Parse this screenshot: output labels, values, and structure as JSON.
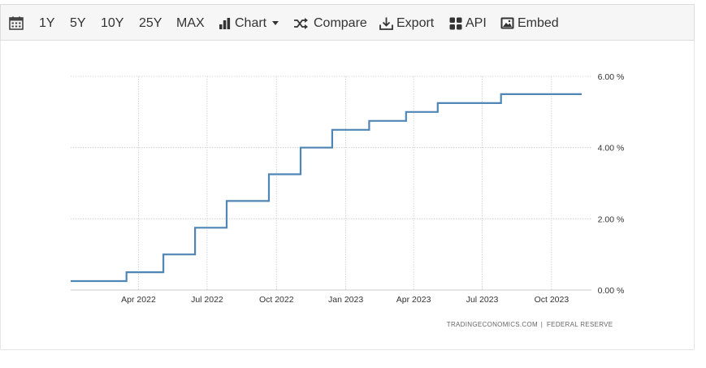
{
  "toolbar": {
    "ranges": [
      "1Y",
      "5Y",
      "10Y",
      "25Y",
      "MAX"
    ],
    "chart_label": "Chart",
    "compare_label": "Compare",
    "export_label": "Export",
    "api_label": "API",
    "embed_label": "Embed",
    "icons": [
      "calendar-icon",
      "bar-chart-icon",
      "caret-down-icon",
      "shuffle-icon",
      "download-icon",
      "grid-icon",
      "image-icon"
    ]
  },
  "credit": {
    "source": "TRADINGECONOMICS.COM",
    "separator": "|",
    "provider": "FEDERAL RESERVE"
  },
  "colors": {
    "line": "#4f86b6",
    "grid": "#cccccc",
    "toolbar_bg": "#f6f6f6"
  },
  "chart_data": {
    "type": "line",
    "step": true,
    "title": "",
    "xlabel": "",
    "ylabel": "",
    "ylim": [
      0,
      6
    ],
    "xlim": [
      "2022-01-01",
      "2023-11-10"
    ],
    "yaxis_position": "right",
    "grid": true,
    "y_ticks": [
      "0.00 %",
      "2.00 %",
      "4.00 %",
      "6.00 %"
    ],
    "y_tick_values": [
      0,
      2,
      4,
      6
    ],
    "x_ticks": [
      "Apr 2022",
      "Jul 2022",
      "Oct 2022",
      "Jan 2023",
      "Apr 2023",
      "Jul 2023",
      "Oct 2023"
    ],
    "x_tick_dates": [
      "2022-04-01",
      "2022-07-01",
      "2022-10-01",
      "2023-01-01",
      "2023-04-01",
      "2023-07-01",
      "2023-10-01"
    ],
    "series": [
      {
        "x": [
          "2022-01-01",
          "2022-03-16",
          "2022-05-04",
          "2022-06-15",
          "2022-07-27",
          "2022-09-21",
          "2022-11-02",
          "2022-12-14",
          "2023-02-01",
          "2023-03-22",
          "2023-05-03",
          "2023-07-26",
          "2023-11-10"
        ],
        "values": [
          0.25,
          0.5,
          1.0,
          1.75,
          2.5,
          3.25,
          4.0,
          4.5,
          4.75,
          5.0,
          5.25,
          5.5,
          5.5
        ]
      }
    ]
  }
}
